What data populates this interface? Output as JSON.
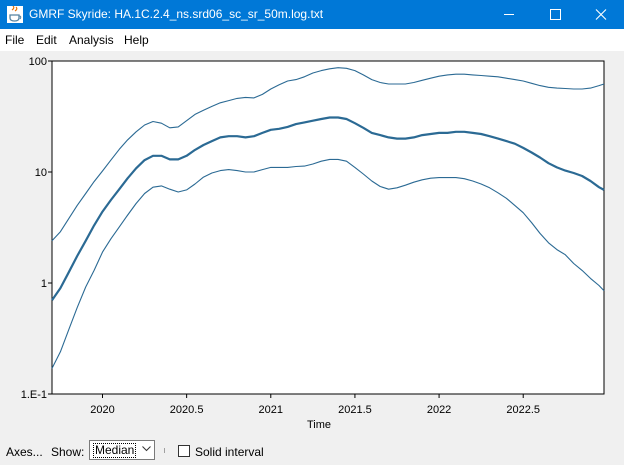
{
  "window": {
    "title": "GMRF Skyride: HA.1C.2.4_ns.srd06_sc_sr_50m.log.txt"
  },
  "menu": [
    "File",
    "Edit",
    "Analysis",
    "Help"
  ],
  "controls": {
    "axes_label": "Axes...",
    "show_label": "Show:",
    "show_value": "Median",
    "solid_interval_label": "Solid interval",
    "solid_interval_checked": false
  },
  "chart_data": {
    "type": "line",
    "xlabel": "Time",
    "ylabel": "",
    "xlim": [
      2019.7,
      2022.98
    ],
    "ylim": [
      0.1,
      100
    ],
    "y_scale": "log",
    "x_ticks": [
      2020,
      2020.5,
      2021,
      2021.5,
      2022,
      2022.5
    ],
    "x_tick_labels": [
      "2020",
      "2020.5",
      "2021",
      "2021.5",
      "2022",
      "2022.5"
    ],
    "y_ticks": [
      0.1,
      1,
      10,
      100
    ],
    "y_tick_labels": [
      "1.E-1",
      "1",
      "10",
      "100"
    ],
    "grid": false,
    "line_color": "#2b6a94",
    "series": [
      {
        "role": "upper",
        "x": [
          2019.7,
          2019.75,
          2019.8,
          2019.85,
          2019.9,
          2019.95,
          2020.0,
          2020.05,
          2020.1,
          2020.15,
          2020.2,
          2020.25,
          2020.3,
          2020.35,
          2020.4,
          2020.45,
          2020.5,
          2020.55,
          2020.6,
          2020.65,
          2020.7,
          2020.75,
          2020.8,
          2020.85,
          2020.9,
          2020.95,
          2021.0,
          2021.05,
          2021.1,
          2021.15,
          2021.2,
          2021.25,
          2021.3,
          2021.35,
          2021.4,
          2021.45,
          2021.5,
          2021.55,
          2021.6,
          2021.65,
          2021.7,
          2021.75,
          2021.8,
          2021.85,
          2021.9,
          2021.95,
          2022.0,
          2022.05,
          2022.1,
          2022.15,
          2022.2,
          2022.25,
          2022.3,
          2022.35,
          2022.4,
          2022.45,
          2022.5,
          2022.55,
          2022.6,
          2022.65,
          2022.7,
          2022.75,
          2022.8,
          2022.85,
          2022.9,
          2022.95,
          2022.98
        ],
        "y": [
          2.4,
          2.9,
          3.8,
          5.0,
          6.4,
          8.2,
          10.2,
          12.8,
          16.0,
          19.5,
          23.0,
          26.5,
          28.5,
          27.5,
          25.0,
          25.5,
          29.0,
          33.0,
          36.0,
          39.0,
          42.0,
          44.0,
          46.0,
          47.0,
          46.5,
          50.0,
          56.0,
          61.0,
          66.0,
          68.0,
          72.0,
          78.0,
          82.0,
          85.0,
          87.0,
          86.0,
          82.0,
          75.0,
          68.0,
          64.0,
          62.0,
          62.0,
          62.0,
          64.0,
          67.0,
          70.0,
          73.0,
          75.0,
          76.0,
          76.0,
          75.0,
          74.0,
          73.0,
          72.0,
          70.0,
          68.0,
          66.0,
          63.0,
          60.0,
          58.0,
          57.0,
          56.5,
          56.0,
          56.0,
          57.0,
          60.0,
          62.0
        ]
      },
      {
        "role": "median",
        "x": [
          2019.7,
          2019.75,
          2019.8,
          2019.85,
          2019.9,
          2019.95,
          2020.0,
          2020.05,
          2020.1,
          2020.15,
          2020.2,
          2020.25,
          2020.3,
          2020.35,
          2020.4,
          2020.45,
          2020.5,
          2020.55,
          2020.6,
          2020.65,
          2020.7,
          2020.75,
          2020.8,
          2020.85,
          2020.9,
          2020.95,
          2021.0,
          2021.05,
          2021.1,
          2021.15,
          2021.2,
          2021.25,
          2021.3,
          2021.35,
          2021.4,
          2021.45,
          2021.5,
          2021.55,
          2021.6,
          2021.65,
          2021.7,
          2021.75,
          2021.8,
          2021.85,
          2021.9,
          2021.95,
          2022.0,
          2022.05,
          2022.1,
          2022.15,
          2022.2,
          2022.25,
          2022.3,
          2022.35,
          2022.4,
          2022.45,
          2022.5,
          2022.55,
          2022.6,
          2022.65,
          2022.7,
          2022.75,
          2022.8,
          2022.85,
          2022.9,
          2022.95,
          2022.98
        ],
        "y": [
          0.7,
          0.9,
          1.25,
          1.75,
          2.4,
          3.3,
          4.4,
          5.6,
          7.0,
          8.8,
          10.8,
          12.8,
          14.0,
          14.0,
          13.0,
          13.0,
          14.0,
          15.8,
          17.5,
          19.0,
          20.5,
          21.0,
          21.0,
          20.5,
          21.0,
          22.5,
          24.0,
          24.5,
          25.5,
          27.0,
          28.0,
          29.0,
          30.0,
          31.0,
          31.0,
          30.0,
          27.5,
          25.0,
          22.5,
          21.5,
          20.5,
          20.0,
          20.0,
          20.5,
          21.5,
          22.0,
          22.5,
          22.5,
          23.0,
          23.0,
          22.5,
          22.0,
          21.0,
          20.0,
          19.0,
          18.0,
          16.5,
          15.0,
          13.5,
          12.0,
          11.0,
          10.3,
          9.8,
          9.2,
          8.3,
          7.3,
          6.9
        ]
      },
      {
        "role": "lower",
        "x": [
          2019.7,
          2019.75,
          2019.8,
          2019.85,
          2019.9,
          2019.95,
          2020.0,
          2020.05,
          2020.1,
          2020.15,
          2020.2,
          2020.25,
          2020.3,
          2020.35,
          2020.4,
          2020.45,
          2020.5,
          2020.55,
          2020.6,
          2020.65,
          2020.7,
          2020.75,
          2020.8,
          2020.85,
          2020.9,
          2020.95,
          2021.0,
          2021.05,
          2021.1,
          2021.15,
          2021.2,
          2021.25,
          2021.3,
          2021.35,
          2021.4,
          2021.45,
          2021.5,
          2021.55,
          2021.6,
          2021.65,
          2021.7,
          2021.75,
          2021.8,
          2021.85,
          2021.9,
          2021.95,
          2022.0,
          2022.05,
          2022.1,
          2022.15,
          2022.2,
          2022.25,
          2022.3,
          2022.35,
          2022.4,
          2022.45,
          2022.5,
          2022.55,
          2022.6,
          2022.65,
          2022.7,
          2022.75,
          2022.8,
          2022.85,
          2022.9,
          2022.95,
          2022.98
        ],
        "y": [
          0.17,
          0.24,
          0.38,
          0.6,
          0.92,
          1.3,
          1.9,
          2.5,
          3.2,
          4.1,
          5.2,
          6.4,
          7.3,
          7.5,
          7.0,
          6.6,
          6.9,
          7.8,
          9.0,
          9.8,
          10.3,
          10.5,
          10.3,
          10.0,
          10.0,
          10.5,
          11.0,
          11.0,
          11.0,
          11.2,
          11.3,
          11.8,
          12.5,
          13.0,
          13.0,
          12.5,
          11.0,
          9.6,
          8.3,
          7.4,
          7.0,
          7.2,
          7.6,
          8.1,
          8.5,
          8.8,
          8.9,
          8.9,
          8.9,
          8.7,
          8.3,
          7.8,
          7.2,
          6.5,
          5.8,
          5.0,
          4.3,
          3.5,
          2.8,
          2.3,
          2.0,
          1.8,
          1.5,
          1.3,
          1.1,
          0.95,
          0.85
        ]
      }
    ]
  }
}
